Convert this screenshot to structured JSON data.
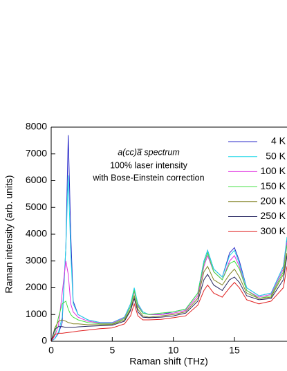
{
  "chart_data": {
    "type": "line",
    "annotations": [
      "a(cc)a̅ spectrum",
      "100% laser intensity",
      "with Bose-Einstein correction"
    ],
    "x_label": "Raman shift (THz)",
    "y_label": "Raman intensity (arb. units)",
    "x": [
      0,
      0.3,
      0.6,
      0.9,
      1.2,
      1.4,
      1.6,
      1.8,
      2.2,
      3,
      4,
      5,
      6,
      6.5,
      6.8,
      7.1,
      7.5,
      8,
      9,
      10,
      11,
      12,
      12.5,
      12.8,
      13.3,
      14,
      14.6,
      15,
      15.4,
      16,
      17,
      18,
      19,
      19.3
    ],
    "series": [
      {
        "name": "4 K",
        "color": "#2a2ac8",
        "values": [
          0,
          100,
          300,
          700,
          3500,
          7700,
          4000,
          1500,
          1000,
          800,
          700,
          700,
          900,
          1400,
          1900,
          1400,
          1100,
          1000,
          1000,
          1100,
          1200,
          1800,
          3000,
          3400,
          2700,
          2400,
          3300,
          3500,
          3000,
          2000,
          1700,
          1800,
          2800,
          3800
        ]
      },
      {
        "name": "50 K",
        "color": "#20d8e8",
        "values": [
          0,
          100,
          350,
          900,
          3500,
          6200,
          3300,
          1400,
          1000,
          800,
          700,
          700,
          900,
          1400,
          2000,
          1400,
          1100,
          1000,
          1050,
          1100,
          1200,
          1800,
          3000,
          3400,
          2700,
          2400,
          3200,
          3400,
          2900,
          2000,
          1700,
          1800,
          2800,
          3900
        ]
      },
      {
        "name": "100 K",
        "color": "#e030e0",
        "values": [
          0,
          200,
          600,
          1800,
          3000,
          2500,
          1400,
          1100,
          900,
          750,
          680,
          680,
          880,
          1300,
          1850,
          1350,
          1050,
          1000,
          1000,
          1050,
          1150,
          1700,
          2800,
          3200,
          2600,
          2300,
          3000,
          3200,
          2800,
          1900,
          1650,
          1750,
          2700,
          3700
        ]
      },
      {
        "name": "150 K",
        "color": "#40e040",
        "values": [
          0,
          300,
          900,
          1400,
          1500,
          1200,
          1000,
          900,
          800,
          700,
          650,
          650,
          850,
          1300,
          1900,
          1300,
          1050,
          1000,
          1050,
          1100,
          1200,
          1800,
          2900,
          3300,
          2600,
          2300,
          2900,
          3000,
          2700,
          1900,
          1600,
          1700,
          2600,
          3600
        ]
      },
      {
        "name": "200 K",
        "color": "#808020",
        "values": [
          0,
          500,
          750,
          800,
          750,
          700,
          680,
          650,
          650,
          620,
          620,
          630,
          800,
          1200,
          1700,
          1200,
          950,
          900,
          950,
          1000,
          1100,
          1600,
          2600,
          2800,
          2300,
          2100,
          2500,
          2700,
          2400,
          1800,
          1600,
          1650,
          2500,
          3300
        ]
      },
      {
        "name": "250 K",
        "color": "#262660",
        "values": [
          0,
          450,
          550,
          550,
          520,
          520,
          520,
          520,
          540,
          560,
          580,
          600,
          750,
          1150,
          1600,
          1100,
          900,
          880,
          900,
          950,
          1050,
          1500,
          2300,
          2500,
          2100,
          1900,
          2300,
          2400,
          2200,
          1700,
          1550,
          1600,
          2300,
          3200
        ]
      },
      {
        "name": "300 K",
        "color": "#e02020",
        "values": [
          0,
          250,
          300,
          300,
          320,
          330,
          340,
          350,
          380,
          420,
          470,
          500,
          650,
          950,
          1400,
          950,
          800,
          800,
          820,
          880,
          950,
          1350,
          1900,
          2100,
          1800,
          1650,
          2000,
          2200,
          2000,
          1550,
          1400,
          1500,
          2000,
          2800
        ]
      }
    ],
    "xlim": [
      0,
      19.3
    ],
    "ylim": [
      0,
      8000
    ],
    "xticks": [
      0,
      5,
      10,
      15
    ],
    "yticks": [
      0,
      1000,
      2000,
      3000,
      4000,
      5000,
      6000,
      7000,
      8000
    ]
  }
}
